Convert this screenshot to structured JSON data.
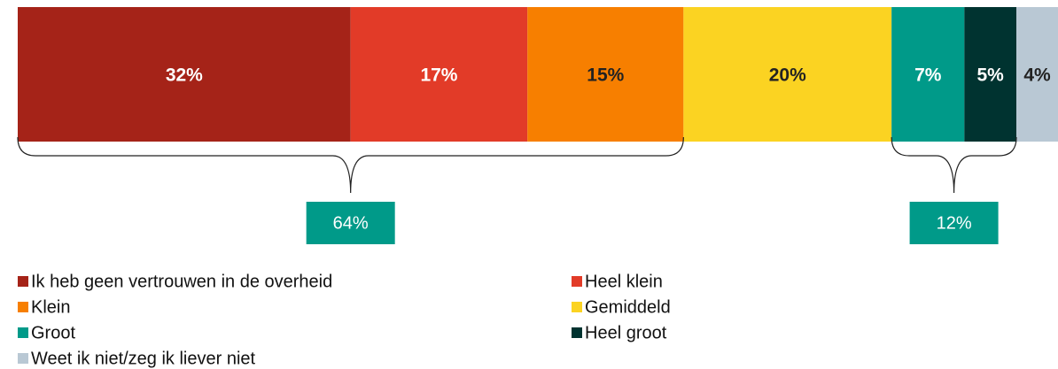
{
  "chart_data": {
    "type": "stacked_bar",
    "xlim": [
      0,
      100
    ],
    "series": [
      {
        "name": "Ik heb geen vertrouwen in de overheid",
        "color": "#a52318",
        "values": [
          32
        ],
        "value_labels": [
          "32%"
        ]
      },
      {
        "name": "Heel klein",
        "color": "#e23b28",
        "values": [
          17
        ],
        "value_labels": [
          "17%"
        ]
      },
      {
        "name": "Klein",
        "color": "#f77f00",
        "values": [
          15
        ],
        "value_labels": [
          "15%"
        ]
      },
      {
        "name": "Gemiddeld",
        "color": "#fbd322",
        "values": [
          20
        ],
        "value_labels": [
          "20%"
        ]
      },
      {
        "name": "Groot",
        "color": "#009a89",
        "values": [
          7
        ],
        "value_labels": [
          "7%"
        ]
      },
      {
        "name": "Heel groot",
        "color": "#003330",
        "values": [
          5
        ],
        "value_labels": [
          "5%"
        ]
      },
      {
        "name": "Weet ik niet/zeg ik liever niet",
        "color": "#b9c8d4",
        "values": [
          4
        ],
        "value_labels": [
          "4%"
        ]
      }
    ],
    "groups": [
      {
        "label": "64%",
        "value": 64,
        "color": "#009a89",
        "series": [
          "Ik heb geen vertrouwen in de overheid",
          "Heel klein",
          "Klein"
        ]
      },
      {
        "label": "12%",
        "value": 12,
        "color": "#009a89",
        "series": [
          "Groot",
          "Heel groot"
        ]
      }
    ]
  }
}
